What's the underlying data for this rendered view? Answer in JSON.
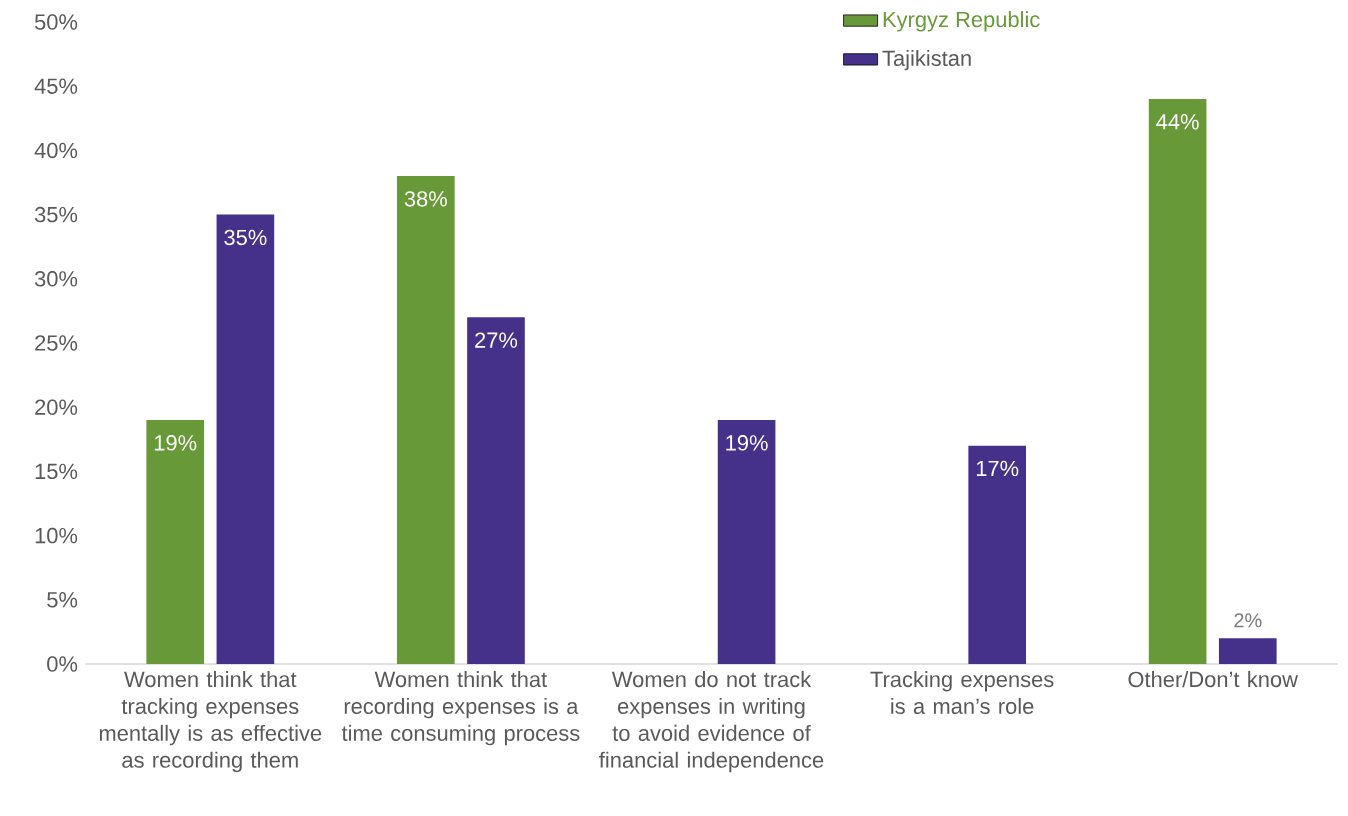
{
  "chart_data": {
    "type": "bar",
    "categories": [
      "Women think that tracking expenses mentally is as effective as recording them",
      "Women think that recording expenses is a time consuming process",
      "Women do not track expenses in writing to avoid evidence of financial independence",
      "Tracking expenses is a man’s role",
      "Other/Don’t know"
    ],
    "series": [
      {
        "name": "Kyrgyz Republic",
        "color": "#689938",
        "values": [
          19,
          38,
          null,
          null,
          44
        ],
        "value_labels": [
          "19%",
          "38%",
          null,
          null,
          "44%"
        ]
      },
      {
        "name": "Tajikistan",
        "color": "#46318a",
        "values": [
          35,
          27,
          19,
          17,
          2
        ],
        "value_labels": [
          "35%",
          "27%",
          "19%",
          "17%",
          "2%"
        ]
      }
    ],
    "ylim": [
      0,
      50
    ],
    "yticks": [
      {
        "value": 0,
        "label": "0%"
      },
      {
        "value": 5,
        "label": "5%"
      },
      {
        "value": 10,
        "label": "10%"
      },
      {
        "value": 15,
        "label": "15%"
      },
      {
        "value": 20,
        "label": "20%"
      },
      {
        "value": 25,
        "label": "25%"
      },
      {
        "value": 30,
        "label": "30%"
      },
      {
        "value": 35,
        "label": "35%"
      },
      {
        "value": 40,
        "label": "40%"
      },
      {
        "value": 45,
        "label": "45%"
      },
      {
        "value": 50,
        "label": "50%"
      }
    ],
    "legend": "top right",
    "grid": false
  }
}
